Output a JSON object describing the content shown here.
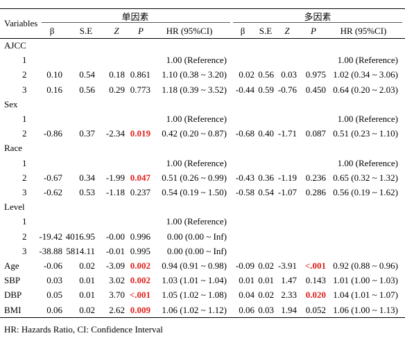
{
  "header": {
    "variables": "Variables",
    "group_uni": "单因素",
    "group_multi": "多因素",
    "cols_uni": [
      "β",
      "S.E",
      "Z",
      "P",
      "HR (95%CI)"
    ],
    "cols_multi": [
      "β",
      "S.E",
      "Z",
      "P",
      "HR (95%CI)"
    ]
  },
  "rows": [
    {
      "label": "AJCC",
      "type": "group"
    },
    {
      "label": "1",
      "type": "level",
      "uni": [
        "",
        "",
        "",
        "",
        "1.00 (Reference)"
      ],
      "multi": [
        "",
        "",
        "",
        "",
        "1.00 (Reference)"
      ]
    },
    {
      "label": "2",
      "type": "level",
      "uni": [
        "0.10",
        "0.54",
        "0.18",
        "0.861",
        "1.10 (0.38 ~ 3.20)"
      ],
      "multi": [
        "0.02",
        "0.56",
        "0.03",
        "0.975",
        "1.02 (0.34 ~ 3.06)"
      ]
    },
    {
      "label": "3",
      "type": "level",
      "uni": [
        "0.16",
        "0.56",
        "0.29",
        "0.773",
        "1.18 (0.39 ~ 3.52)"
      ],
      "multi": [
        "-0.44",
        "0.59",
        "-0.76",
        "0.450",
        "0.64 (0.20 ~ 2.03)"
      ]
    },
    {
      "label": "Sex",
      "type": "group"
    },
    {
      "label": "1",
      "type": "level",
      "uni": [
        "",
        "",
        "",
        "",
        "1.00 (Reference)"
      ],
      "multi": [
        "",
        "",
        "",
        "",
        "1.00 (Reference)"
      ]
    },
    {
      "label": "2",
      "type": "level",
      "uni": [
        "-0.86",
        "0.37",
        "-2.34",
        "0.019",
        "0.42 (0.20 ~ 0.87)"
      ],
      "multi": [
        "-0.68",
        "0.40",
        "-1.71",
        "0.087",
        "0.51 (0.23 ~ 1.10)"
      ],
      "sig_uni": true
    },
    {
      "label": "Race",
      "type": "group"
    },
    {
      "label": "1",
      "type": "level",
      "uni": [
        "",
        "",
        "",
        "",
        "1.00 (Reference)"
      ],
      "multi": [
        "",
        "",
        "",
        "",
        "1.00 (Reference)"
      ]
    },
    {
      "label": "2",
      "type": "level",
      "uni": [
        "-0.67",
        "0.34",
        "-1.99",
        "0.047",
        "0.51 (0.26 ~ 0.99)"
      ],
      "multi": [
        "-0.43",
        "0.36",
        "-1.19",
        "0.236",
        "0.65 (0.32 ~ 1.32)"
      ],
      "sig_uni": true
    },
    {
      "label": "3",
      "type": "level",
      "uni": [
        "-0.62",
        "0.53",
        "-1.18",
        "0.237",
        "0.54 (0.19 ~ 1.50)"
      ],
      "multi": [
        "-0.58",
        "0.54",
        "-1.07",
        "0.286",
        "0.56 (0.19 ~ 1.62)"
      ]
    },
    {
      "label": "Level",
      "type": "group"
    },
    {
      "label": "1",
      "type": "level",
      "uni": [
        "",
        "",
        "",
        "",
        "1.00 (Reference)"
      ],
      "multi": [
        "",
        "",
        "",
        "",
        ""
      ]
    },
    {
      "label": "2",
      "type": "level",
      "uni": [
        "-19.42",
        "4016.95",
        "-0.00",
        "0.996",
        "0.00 (0.00 ~ Inf)"
      ],
      "multi": [
        "",
        "",
        "",
        "",
        ""
      ]
    },
    {
      "label": "3",
      "type": "level",
      "uni": [
        "-38.88",
        "5814.11",
        "-0.01",
        "0.995",
        "0.00 (0.00 ~ Inf)"
      ],
      "multi": [
        "",
        "",
        "",
        "",
        ""
      ]
    },
    {
      "label": "Age",
      "type": "var",
      "uni": [
        "-0.06",
        "0.02",
        "-3.09",
        "0.002",
        "0.94 (0.91 ~ 0.98)"
      ],
      "multi": [
        "-0.09",
        "0.02",
        "-3.91",
        "<.001",
        "0.92 (0.88 ~ 0.96)"
      ],
      "sig_uni": true,
      "sig_multi": true
    },
    {
      "label": "SBP",
      "type": "var",
      "uni": [
        "0.03",
        "0.01",
        "3.02",
        "0.002",
        "1.03 (1.01 ~ 1.04)"
      ],
      "multi": [
        "0.01",
        "0.01",
        "1.47",
        "0.143",
        "1.01 (1.00 ~ 1.03)"
      ],
      "sig_uni": true
    },
    {
      "label": "DBP",
      "type": "var",
      "uni": [
        "0.05",
        "0.01",
        "3.70",
        "<.001",
        "1.05 (1.02 ~ 1.08)"
      ],
      "multi": [
        "0.04",
        "0.02",
        "2.33",
        "0.020",
        "1.04 (1.01 ~ 1.07)"
      ],
      "sig_uni": true,
      "sig_multi": true
    },
    {
      "label": "BMI",
      "type": "var",
      "uni": [
        "0.06",
        "0.02",
        "2.62",
        "0.009",
        "1.06 (1.02 ~ 1.12)"
      ],
      "multi": [
        "0.06",
        "0.03",
        "1.94",
        "0.052",
        "1.06 (1.00 ~ 1.13)"
      ],
      "sig_uni": true
    }
  ],
  "footnote": "HR: Hazards Ratio, CI: Confidence Interval"
}
